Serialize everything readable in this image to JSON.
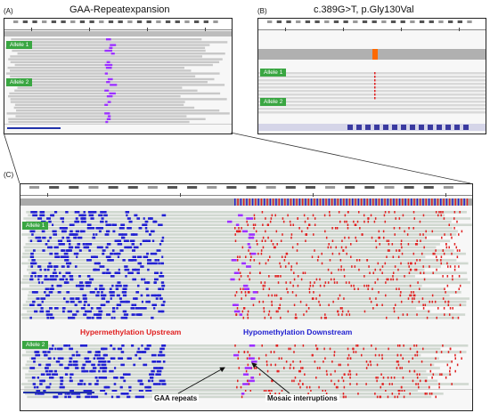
{
  "panels": {
    "a": {
      "label": "(A)",
      "title": "GAA-Repeatexpansion",
      "allele1": "Allele 1",
      "allele2": "Allele 2"
    },
    "b": {
      "label": "(B)",
      "title": "c.389G>T, p.Gly130Val",
      "allele1": "Allele 1",
      "allele2": "Allele 2"
    },
    "c": {
      "label": "(C)",
      "allele1": "Allele 1",
      "allele2": "Allele 2",
      "hyper_label": "Hypermethylation Upstream",
      "hypo_label": "Hypomethylation Downstream",
      "gaa_label": "GAA repeats",
      "mosaic_label": "Mosaic interruptions"
    }
  },
  "colors": {
    "allele_tag": "#3aa642",
    "hyper": "#e02020",
    "hypo": "#2020d0",
    "read_gray": "#c8c8c8",
    "repeat_purple": "#9b30ff",
    "snv_orange": "#ff6a00"
  }
}
